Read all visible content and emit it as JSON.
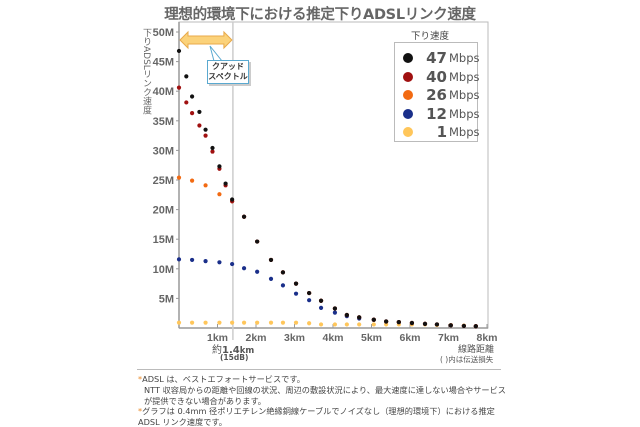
{
  "chart_data": {
    "type": "scatter",
    "title": "理想的環境下における推定下りADSLリンク速度",
    "ylabel": "下りADSLリンク速度",
    "xlabel": "線路距離",
    "xlabel_note": "( )内は伝送損失",
    "xlim": [
      0,
      8
    ],
    "ylim": [
      0,
      50
    ],
    "x_ticks": [
      "1km",
      "2km",
      "3km",
      "4km",
      "5km",
      "6km",
      "7km",
      "8km"
    ],
    "y_ticks": [
      "5M",
      "10M",
      "15M",
      "20M",
      "25M",
      "30M",
      "35M",
      "40M",
      "45M",
      "50M"
    ],
    "grid": false,
    "legend_title": "下り速度",
    "legend_position": "top-right",
    "series": [
      {
        "name": "1",
        "unit": "Mbps",
        "color": "#ffc65a",
        "x": [
          0,
          0.34,
          0.69,
          1.05,
          1.38,
          1.69,
          2.03,
          2.39,
          2.7,
          3.04,
          3.38,
          3.69,
          4.05,
          4.36,
          4.68,
          5.06,
          5.38,
          5.71,
          6.05,
          6.39,
          6.7,
          7.06,
          7.4,
          7.71
        ],
        "y": [
          0.9,
          0.9,
          0.9,
          0.9,
          0.9,
          0.9,
          0.9,
          0.9,
          0.9,
          0.9,
          0.8,
          0.6,
          0.6,
          0.6,
          0.6,
          0.6,
          0.6,
          0.6,
          0.6,
          0.6,
          0.5,
          0.5,
          0.4,
          0.3
        ]
      },
      {
        "name": "12",
        "unit": "Mbps",
        "color": "#1a2f8a",
        "x": [
          0,
          0.34,
          0.69,
          1.05,
          1.38,
          1.69,
          2.03,
          2.39,
          2.7,
          3.04,
          3.38,
          3.69,
          4.05,
          4.36,
          4.68,
          5.06,
          5.38,
          5.71,
          6.05,
          6.39,
          6.7,
          7.06,
          7.4,
          7.71
        ],
        "y": [
          11.6,
          11.5,
          11.3,
          11.1,
          10.8,
          10.1,
          9.5,
          8.3,
          7.2,
          5.8,
          4.7,
          3.4,
          2.6,
          2.0,
          1.6,
          1.4,
          1.1,
          1.0,
          0.85,
          0.7,
          0.6,
          0.45,
          0.35,
          0.3
        ]
      },
      {
        "name": "26",
        "unit": "Mbps",
        "color": "#f26a12",
        "x": [
          0,
          0.34,
          0.69,
          1.05,
          1.38,
          1.69,
          2.03,
          2.39,
          2.7,
          3.04,
          3.38,
          3.69,
          4.05,
          4.36,
          4.68,
          5.06,
          5.38,
          5.71,
          6.05,
          6.39,
          6.7,
          7.06,
          7.4,
          7.71
        ],
        "y": [
          25.4,
          24.9,
          24.1,
          22.6,
          21.4,
          18.8,
          14.6,
          11.5,
          9.4,
          7.5,
          5.9,
          4.6,
          3.3,
          2.2,
          1.8,
          1.4,
          1.1,
          1.0,
          0.85,
          0.7,
          0.6,
          0.45,
          0.35,
          0.3
        ]
      },
      {
        "name": "40",
        "unit": "Mbps",
        "color": "#a01010",
        "x": [
          0,
          0.19,
          0.34,
          0.53,
          0.69,
          0.87,
          1.05,
          1.21,
          1.38,
          1.69,
          2.03,
          2.39,
          2.7,
          3.04,
          3.38,
          3.69,
          4.05,
          4.36,
          4.68,
          5.06,
          5.38,
          5.71,
          6.05,
          6.39,
          6.7,
          7.06,
          7.4,
          7.71
        ],
        "y": [
          40.6,
          38.1,
          36.3,
          34.2,
          32.5,
          29.8,
          26.9,
          24.1,
          21.4,
          18.8,
          14.6,
          11.5,
          9.4,
          7.5,
          5.9,
          4.6,
          3.3,
          2.2,
          1.8,
          1.4,
          1.1,
          1.0,
          0.85,
          0.7,
          0.6,
          0.45,
          0.35,
          0.3
        ]
      },
      {
        "name": "47",
        "unit": "Mbps",
        "color": "#111111",
        "x": [
          0,
          0.19,
          0.34,
          0.53,
          0.69,
          0.87,
          1.05,
          1.21,
          1.38,
          1.69,
          2.03,
          2.39,
          2.7,
          3.04,
          3.38,
          3.69,
          4.05,
          4.36,
          4.68,
          5.06,
          5.38,
          5.71,
          6.05,
          6.39,
          6.7,
          7.06,
          7.4,
          7.71
        ],
        "y": [
          46.8,
          42.5,
          39.1,
          36.5,
          33.5,
          30.4,
          27.3,
          24.4,
          21.7,
          18.8,
          14.6,
          11.5,
          9.4,
          7.5,
          5.9,
          4.6,
          3.3,
          2.2,
          1.8,
          1.4,
          1.1,
          1.0,
          0.85,
          0.7,
          0.6,
          0.45,
          0.35,
          0.3
        ]
      }
    ],
    "legend": [
      {
        "num": "47",
        "unit": "Mbps",
        "color": "#111111"
      },
      {
        "num": "40",
        "unit": "Mbps",
        "color": "#a01010"
      },
      {
        "num": "26",
        "unit": "Mbps",
        "color": "#f26a12"
      },
      {
        "num": "12",
        "unit": "Mbps",
        "color": "#1a2f8a"
      },
      {
        "num": "1",
        "unit": "Mbps",
        "color": "#ffc65a"
      }
    ],
    "annotations": {
      "quad_spectrum_label_1": "クアッド",
      "quad_spectrum_label_2": "スペクトル",
      "quad_spectrum_extent_km": 1.4,
      "marker_label_prefix": "約",
      "marker_label_value": "1.4",
      "marker_label_unit": "km",
      "marker_loss": "(15dB)"
    }
  },
  "notes": [
    "ADSL は、ベストエフォートサービスです。",
    "NTT 収容局からの距離や回線の状況、周辺の敷設状況により、最大速度に達しない場合やサービスが提供できない場合があります。",
    "グラフは 0.4mm 径ポリエチレン絶縁銅線ケーブルでノイズなし（理想的環境下）における推定 ADSL リンク速度です。"
  ],
  "note_marker": "*"
}
